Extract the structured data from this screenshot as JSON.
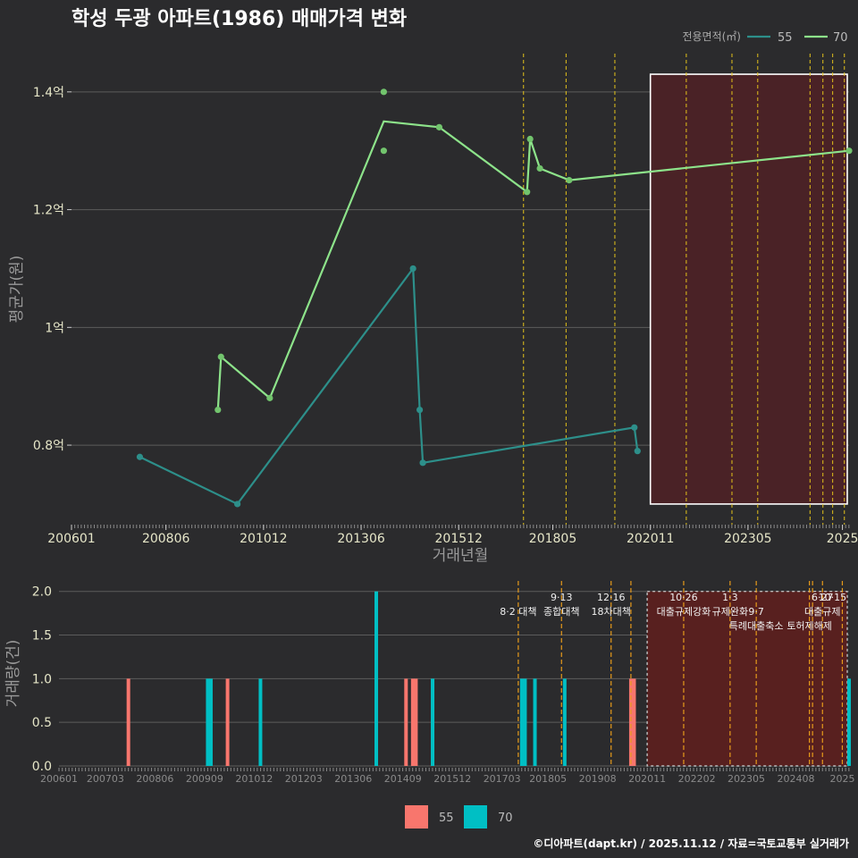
{
  "title": "학성 두광 아파트(1986) 매매가격 변화",
  "footer": "©디아파트(dapt.kr) / 2025.11.12 / 자료=국토교통부 실거래가",
  "colors": {
    "background": "#2b2b2d",
    "s55_line": "#2d8f8a",
    "s70_line": "#8de38a",
    "s55_bar": "#f8766d",
    "s70_bar": "#00bfc4",
    "policy_line": "#e3c21b",
    "policy_line_bottom": "#e69a1b",
    "highlight_fill": "#4a2226",
    "highlight_fill_bottom": "#58201f"
  },
  "chart_data": [
    {
      "type": "line",
      "name": "price-chart",
      "xlabel": "거래년월",
      "ylabel": "평균가(원)",
      "xlim": [
        2006.0,
        2025.92
      ],
      "ylim": [
        0.665,
        1.465
      ],
      "y_ticks": [
        {
          "value": 0.8,
          "label": "0.8억"
        },
        {
          "value": 1.0,
          "label": "1억"
        },
        {
          "value": 1.2,
          "label": "1.2억"
        },
        {
          "value": 1.4,
          "label": "1.4억"
        }
      ],
      "x_ticks": [
        {
          "value": 2006.0,
          "label": "200601"
        },
        {
          "value": 2008.42,
          "label": "200806"
        },
        {
          "value": 2010.92,
          "label": "201012"
        },
        {
          "value": 2013.42,
          "label": "201306"
        },
        {
          "value": 2015.92,
          "label": "201512"
        },
        {
          "value": 2018.33,
          "label": "201805"
        },
        {
          "value": 2020.83,
          "label": "202011"
        },
        {
          "value": 2023.33,
          "label": "202305"
        },
        {
          "value": 2025.75,
          "label": "2025"
        }
      ],
      "legend": {
        "title": "전용면적(㎡)",
        "position": "top-right",
        "items": [
          "55",
          "70"
        ]
      },
      "series": [
        {
          "name": "55",
          "line": [
            [
              2007.75,
              0.78
            ],
            [
              2010.25,
              0.7
            ],
            [
              2014.75,
              1.1
            ],
            [
              2014.92,
              0.86
            ],
            [
              2015.0,
              0.77
            ],
            [
              2020.42,
              0.83
            ],
            [
              2020.5,
              0.79
            ]
          ],
          "points": [
            [
              2007.75,
              0.78
            ],
            [
              2010.25,
              0.7
            ],
            [
              2014.75,
              1.1
            ],
            [
              2014.92,
              0.86
            ],
            [
              2015.0,
              0.77
            ],
            [
              2020.42,
              0.83
            ],
            [
              2020.5,
              0.79
            ]
          ]
        },
        {
          "name": "70",
          "line": [
            [
              2009.83,
              0.95
            ],
            [
              2009.75,
              0.86
            ],
            [
              2009.83,
              0.95
            ],
            [
              2011.08,
              0.88
            ],
            [
              2014.0,
              1.35
            ],
            [
              2015.42,
              1.34
            ],
            [
              2017.67,
              1.23
            ],
            [
              2017.75,
              1.32
            ],
            [
              2018.0,
              1.27
            ],
            [
              2018.75,
              1.25
            ],
            [
              2025.92,
              1.3
            ]
          ],
          "points": [
            [
              2009.75,
              0.86
            ],
            [
              2009.83,
              0.95
            ],
            [
              2011.08,
              0.88
            ],
            [
              2014.0,
              1.4
            ],
            [
              2014.0,
              1.3
            ],
            [
              2015.42,
              1.34
            ],
            [
              2017.67,
              1.23
            ],
            [
              2017.75,
              1.32
            ],
            [
              2018.0,
              1.27
            ],
            [
              2018.75,
              1.25
            ],
            [
              2025.92,
              1.3
            ]
          ]
        }
      ],
      "policy_dates": [
        2017.58,
        2018.67,
        2019.92,
        2021.75,
        2022.92,
        2023.58,
        2024.92,
        2025.25,
        2025.5,
        2025.8
      ],
      "highlight_range": [
        2020.83,
        2025.92
      ]
    },
    {
      "type": "bar",
      "name": "volume-chart",
      "xlabel": "",
      "ylabel": "거래량(건)",
      "xlim": [
        2006.0,
        2025.92
      ],
      "ylim": [
        0,
        2.12
      ],
      "y_ticks": [
        {
          "value": 0.0,
          "label": "0.0"
        },
        {
          "value": 0.5,
          "label": "0.5"
        },
        {
          "value": 1.0,
          "label": "1.0"
        },
        {
          "value": 1.5,
          "label": "1.5"
        },
        {
          "value": 2.0,
          "label": "2.0"
        }
      ],
      "x_ticks": [
        {
          "value": 2006.0,
          "label": "200601"
        },
        {
          "value": 2007.17,
          "label": "200703"
        },
        {
          "value": 2008.42,
          "label": "200806"
        },
        {
          "value": 2009.67,
          "label": "200909"
        },
        {
          "value": 2010.92,
          "label": "201012"
        },
        {
          "value": 2012.17,
          "label": "201203"
        },
        {
          "value": 2013.42,
          "label": "201306"
        },
        {
          "value": 2014.67,
          "label": "201409"
        },
        {
          "value": 2015.92,
          "label": "201512"
        },
        {
          "value": 2017.17,
          "label": "201703"
        },
        {
          "value": 2018.33,
          "label": "201805"
        },
        {
          "value": 2019.58,
          "label": "201908"
        },
        {
          "value": 2020.83,
          "label": "202011"
        },
        {
          "value": 2022.08,
          "label": "202202"
        },
        {
          "value": 2023.33,
          "label": "202305"
        },
        {
          "value": 2024.58,
          "label": "202408"
        },
        {
          "value": 2025.75,
          "label": "2025"
        }
      ],
      "legend": {
        "position": "bottom",
        "items": [
          "55",
          "70"
        ]
      },
      "series": [
        {
          "name": "55",
          "bars": [
            [
              2007.75,
              1
            ],
            [
              2010.25,
              1
            ],
            [
              2014.75,
              1
            ],
            [
              2014.92,
              1
            ],
            [
              2015.0,
              1
            ],
            [
              2020.42,
              1
            ],
            [
              2020.5,
              1
            ]
          ]
        },
        {
          "name": "70",
          "bars": [
            [
              2009.75,
              1
            ],
            [
              2009.83,
              1
            ],
            [
              2011.08,
              1
            ],
            [
              2014.0,
              2
            ],
            [
              2015.42,
              1
            ],
            [
              2017.67,
              1
            ],
            [
              2017.75,
              1
            ],
            [
              2018.0,
              1
            ],
            [
              2018.75,
              1
            ],
            [
              2025.92,
              1
            ]
          ]
        }
      ],
      "policy_dates": [
        2017.58,
        2018.67,
        2019.92,
        2020.42,
        2021.75,
        2022.92,
        2023.58,
        2024.92,
        2025.0,
        2025.25,
        2025.75
      ],
      "highlight_range": [
        2020.83,
        2025.92
      ],
      "annotations": [
        {
          "x": 2017.58,
          "lines": [
            "8·2 대책"
          ],
          "row": 1
        },
        {
          "x": 2018.67,
          "lines": [
            "9·13",
            "종합대책"
          ],
          "row": 0
        },
        {
          "x": 2019.92,
          "lines": [
            "12·16",
            "18차대책"
          ],
          "row": 0
        },
        {
          "x": 2021.75,
          "lines": [
            "10·26",
            "대출규제강화"
          ],
          "row": 0
        },
        {
          "x": 2022.92,
          "lines": [
            "1·3",
            "규제완화"
          ],
          "row": 0
        },
        {
          "x": 2023.58,
          "lines": [
            "9·7",
            "특례대출축소"
          ],
          "row": 1
        },
        {
          "x": 2024.92,
          "lines": [
            "토허제해제"
          ],
          "row": 2
        },
        {
          "x": 2025.25,
          "lines": [
            "6·27",
            "대출규제"
          ],
          "row": 0
        },
        {
          "x": 2025.5,
          "lines": [
            "10·15"
          ],
          "row": 0
        }
      ]
    }
  ]
}
